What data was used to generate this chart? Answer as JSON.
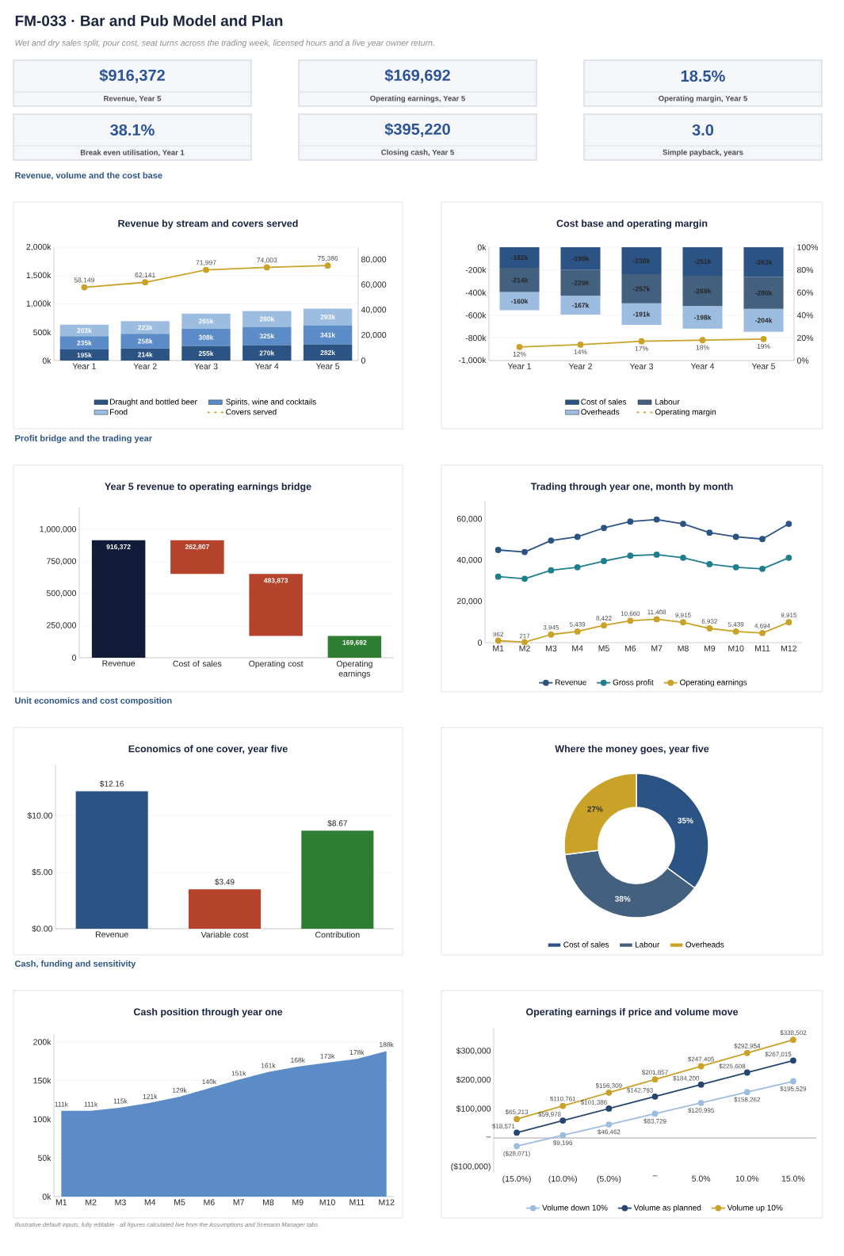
{
  "chart_data": [
    {
      "type": "other",
      "title": "FM-033 · Bar and Pub Model and Plan",
      "subtitle": "Wet and dry sales split, pour cost, seat turns across the trading week, licensed hours and a five year owner return.",
      "annotations": [
        "$916,372",
        "Revenue, Year 5",
        "$169,692",
        "Operating earnings, Year 5",
        "18.5%",
        "Operating margin, Year 5",
        "38.1%",
        "Break even utilisation, Year 1",
        "$395,220",
        "Closing cash, Year 5",
        "3.0",
        "Simple payback, years"
      ]
    },
    {
      "type": "bar",
      "stacked": true,
      "title": "Revenue by stream and covers served",
      "annotations": [
        "Revenue, volume and the cost base"
      ],
      "categories": [
        "Year 1",
        "Year 2",
        "Year 3",
        "Year 4",
        "Year 5"
      ],
      "series": [
        {
          "name": "Draught and bottled beer",
          "color": "#2b5384",
          "values": [
            195,
            214,
            255,
            270,
            282
          ],
          "value_labels": [
            "195k",
            "214k",
            "255k",
            "270k",
            "282k"
          ]
        },
        {
          "name": "Spirits, wine and cocktails",
          "color": "#5b8cc8",
          "values": [
            235,
            258,
            308,
            325,
            341
          ],
          "value_labels": [
            "235k",
            "258k",
            "308k",
            "325k",
            "341k"
          ]
        },
        {
          "name": "Food",
          "color": "#9dbde0",
          "values": [
            203,
            223,
            265,
            280,
            293
          ],
          "value_labels": [
            "203k",
            "223k",
            "265k",
            "280k",
            "293k"
          ]
        },
        {
          "name": "Covers served",
          "type": "line",
          "axis": "y2",
          "color": "#c9a227",
          "values": [
            58149,
            62141,
            71997,
            74003,
            75386
          ],
          "value_labels": [
            "58,149",
            "62,141",
            "71,997",
            "74,003",
            "75,386"
          ]
        }
      ],
      "ylim": [
        0,
        2000
      ],
      "yticks": [
        {
          "value": 0,
          "label": "0k"
        },
        {
          "value": 500,
          "label": "500k"
        },
        {
          "value": 1000,
          "label": "1,000k"
        },
        {
          "value": 1500,
          "label": "1,500k"
        },
        {
          "value": 2000,
          "label": "2,000k"
        }
      ],
      "y2lim": [
        0,
        90000
      ],
      "y2ticks": [
        0,
        {
          "value": 20000,
          "label": "20,000"
        },
        {
          "value": 40000,
          "label": "40,000"
        },
        {
          "value": 60000,
          "label": "60,000"
        },
        {
          "value": 80000,
          "label": "80,000"
        }
      ],
      "grid": "y",
      "legend": "bottom",
      "marker": "circle"
    },
    {
      "type": "bar",
      "stacked": true,
      "title": "Cost base and operating margin",
      "categories": [
        "Year 1",
        "Year 2",
        "Year 3",
        "Year 4",
        "Year 5"
      ],
      "series": [
        {
          "name": "Cost of sales",
          "color": "#2b5384",
          "values": [
            -182,
            -199,
            -238,
            -251,
            -263
          ],
          "value_labels": [
            "-182k",
            "-199k",
            "-238k",
            "-251k",
            "-263k"
          ]
        },
        {
          "name": "Labour",
          "color": "#44607f",
          "values": [
            -214,
            -229,
            -257,
            -269,
            -280
          ],
          "value_labels": [
            "-214k",
            "-229k",
            "-257k",
            "-269k",
            "-280k"
          ]
        },
        {
          "name": "Overheads",
          "color": "#9dbde0",
          "values": [
            -160,
            -167,
            -191,
            -198,
            -204
          ],
          "value_labels": [
            "-160k",
            "-167k",
            "-191k",
            "-198k",
            "-204k"
          ]
        },
        {
          "name": "Operating margin",
          "type": "line",
          "axis": "y2",
          "color": "#c9a227",
          "values": [
            12,
            14,
            17,
            18,
            19
          ],
          "value_labels": [
            "12%",
            "14%",
            "17%",
            "18%",
            "19%"
          ]
        }
      ],
      "ylim": [
        -1000,
        0
      ],
      "yticks": [
        {
          "value": -1000,
          "label": "-1,000k"
        },
        {
          "value": -800,
          "label": "-800k"
        },
        {
          "value": -600,
          "label": "-600k"
        },
        {
          "value": -400,
          "label": "-400k"
        },
        {
          "value": -200,
          "label": "-200k"
        },
        {
          "value": 0,
          "label": "0k"
        }
      ],
      "y2lim": [
        0,
        100
      ],
      "y2ticks": [
        {
          "value": 0,
          "label": "0%"
        },
        {
          "value": 20,
          "label": "20%"
        },
        {
          "value": 40,
          "label": "40%"
        },
        {
          "value": 60,
          "label": "60%"
        },
        {
          "value": 80,
          "label": "80%"
        },
        {
          "value": 100,
          "label": "100%"
        }
      ],
      "grid": "y",
      "legend": "bottom",
      "marker": "circle"
    },
    {
      "type": "bar",
      "title": "Year 5 revenue to operating earnings bridge",
      "annotations": [
        "Profit bridge and the trading year"
      ],
      "categories": [
        "Revenue",
        "Cost of sales",
        "Operating cost",
        "Operating earnings"
      ],
      "values": [
        916372,
        262807,
        483873,
        169692
      ],
      "base": [
        0,
        653565,
        169692,
        0
      ],
      "colors": [
        "#111d38",
        "#b5432c",
        "#b5432c",
        "#2e7d32"
      ],
      "value_labels": [
        "916,372",
        "262,807",
        "483,873",
        "169,692"
      ],
      "ylim": [
        0,
        1175000
      ],
      "yticks": [
        0,
        {
          "value": 250000,
          "label": "250,000"
        },
        {
          "value": 500000,
          "label": "500,000"
        },
        {
          "value": 750000,
          "label": "750,000"
        },
        {
          "value": 1000000,
          "label": "1,000,000"
        }
      ],
      "grid": "y"
    },
    {
      "type": "line",
      "title": "Trading through year one, month by month",
      "categories": [
        "M1",
        "M2",
        "M3",
        "M4",
        "M5",
        "M6",
        "M7",
        "M8",
        "M9",
        "M10",
        "M11",
        "M12"
      ],
      "series": [
        {
          "name": "Revenue",
          "color": "#2b5384",
          "values": [
            45100,
            44100,
            49700,
            51500,
            55800,
            58900,
            59900,
            57800,
            53500,
            51500,
            50400,
            57800
          ]
        },
        {
          "name": "Gross profit",
          "color": "#1f7f8c",
          "values": [
            32100,
            31100,
            35200,
            36700,
            39700,
            42300,
            42800,
            41300,
            38200,
            36700,
            35900,
            41300
          ]
        },
        {
          "name": "Operating earnings",
          "color": "#c9a227",
          "values": [
            962,
            217,
            3945,
            5439,
            8422,
            10660,
            11408,
            9915,
            6932,
            5439,
            4694,
            9915
          ],
          "value_labels": [
            "962",
            "217",
            "3,945",
            "5,439",
            "8,422",
            "10,660",
            "11,408",
            "9,915",
            "6,932",
            "5,439",
            "4,694",
            "9,915"
          ]
        }
      ],
      "ylim": [
        0,
        69000
      ],
      "yticks": [
        0,
        {
          "value": 20000,
          "label": "20,000"
        },
        {
          "value": 40000,
          "label": "40,000"
        },
        {
          "value": 60000,
          "label": "60,000"
        }
      ],
      "legend": "bottom",
      "marker": "circle"
    },
    {
      "type": "bar",
      "title": "Economics of one cover, year five",
      "annotations": [
        "Unit economics and cost composition"
      ],
      "categories": [
        "Revenue",
        "Variable cost",
        "Contribution"
      ],
      "values": [
        12.16,
        3.49,
        8.67
      ],
      "colors": [
        "#2b5384",
        "#b5432c",
        "#2e7d32"
      ],
      "value_labels": [
        "$12.16",
        "$3.49",
        "$8.67"
      ],
      "ylim": [
        0,
        14.5
      ],
      "yticks": [
        {
          "value": 0,
          "label": "$0.00"
        },
        {
          "value": 5,
          "label": "$5.00"
        },
        {
          "value": 10,
          "label": "$10.00"
        }
      ],
      "grid": "y"
    },
    {
      "type": "donut",
      "title": "Where the money goes, year five",
      "categories": [
        "Cost of sales",
        "Labour",
        "Overheads"
      ],
      "values": [
        35,
        38,
        27
      ],
      "colors": [
        "#2b5384",
        "#44607f",
        "#c9a227"
      ],
      "value_labels": [
        "35%",
        "38%",
        "27%"
      ],
      "legend": "bottom"
    },
    {
      "type": "area",
      "title": "Cash position through year one",
      "annotations": [
        "Cash, funding and sensitivity",
        "illustrative default inputs, fully editable · all figures calculated live from the Assumptions and Scenario Manager tabs"
      ],
      "categories": [
        "M1",
        "M2",
        "M3",
        "M4",
        "M5",
        "M6",
        "M7",
        "M8",
        "M9",
        "M10",
        "M11",
        "M12"
      ],
      "values": [
        111,
        111,
        115,
        121,
        129,
        140,
        151,
        161,
        168,
        173,
        178,
        188
      ],
      "value_labels": [
        "111k",
        "111k",
        "115k",
        "121k",
        "129k",
        "140k",
        "151k",
        "161k",
        "168k",
        "173k",
        "178k",
        "188k"
      ],
      "color": "#5b8cc8",
      "ylim": [
        0,
        210
      ],
      "yticks": [
        {
          "value": 0,
          "label": "0k"
        },
        {
          "value": 50,
          "label": "50k"
        },
        {
          "value": 100,
          "label": "100k"
        },
        {
          "value": 150,
          "label": "150k"
        },
        {
          "value": 200,
          "label": "200k"
        }
      ],
      "grid": "y"
    },
    {
      "type": "line",
      "title": "Operating earnings if price and volume move",
      "categories": [
        "(15.0%)",
        "(10.0%)",
        "(5.0%)",
        "–",
        "5.0%",
        "10.0%",
        "15.0%"
      ],
      "series": [
        {
          "name": "Volume down 10%",
          "color": "#9dbde0",
          "values": [
            -28071,
            9196,
            46462,
            83729,
            120995,
            158262,
            195529
          ],
          "value_labels": [
            "($28,071)",
            "$9,196",
            "$46,462",
            "$83,729",
            "$120,995",
            "$158,262",
            "$195,529"
          ]
        },
        {
          "name": "Volume as planned",
          "color": "#24466f",
          "values": [
            18571,
            59978,
            101386,
            142793,
            184200,
            225608,
            267015
          ],
          "value_labels": [
            "$18,571",
            "$59,978",
            "$101,386",
            "$142,793",
            "$184,200",
            "$225,608",
            "$267,015"
          ]
        },
        {
          "name": "Volume up 10%",
          "color": "#c9a227",
          "values": [
            65213,
            110761,
            156309,
            201857,
            247405,
            292954,
            338502
          ],
          "value_labels": [
            "$65,213",
            "$110,761",
            "$156,309",
            "$201,857",
            "$247,405",
            "$292,954",
            "$338,502"
          ]
        }
      ],
      "ylim": [
        -120000,
        380000
      ],
      "yticks": [
        {
          "value": -100000,
          "label": "($100,000)"
        },
        {
          "value": 0,
          "label": "–"
        },
        {
          "value": 100000,
          "label": "$100,000"
        },
        {
          "value": 200000,
          "label": "$200,000"
        },
        {
          "value": 300000,
          "label": "$300,000"
        }
      ],
      "ref_lines": [
        {
          "axis": "y",
          "value": 0,
          "color": "#8c8c8c"
        }
      ],
      "legend": "bottom",
      "marker": "circle"
    }
  ]
}
